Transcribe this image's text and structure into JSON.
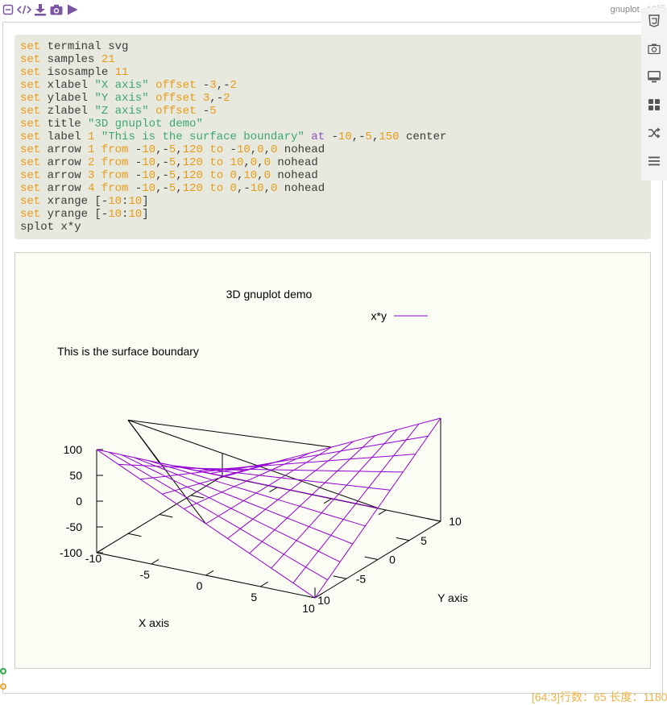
{
  "toolbar": {
    "icons": [
      "collapse-icon",
      "code-icon",
      "download-icon",
      "camera-icon",
      "run-icon"
    ]
  },
  "header": {
    "mode": "gnuplot",
    "line_count": "16行"
  },
  "sidebar": {
    "icons": [
      "css-icon",
      "screenshot-icon",
      "monitor-icon",
      "grid-icon",
      "shuffle-icon",
      "menu-icon"
    ]
  },
  "code": {
    "lines": [
      [
        [
          "kw",
          "set"
        ],
        [
          "t",
          " terminal svg"
        ]
      ],
      [
        [
          "kw",
          "set"
        ],
        [
          "t",
          " samples "
        ],
        [
          "num",
          "21"
        ]
      ],
      [
        [
          "kw",
          "set"
        ],
        [
          "t",
          " isosample "
        ],
        [
          "num",
          "11"
        ]
      ],
      [
        [
          "kw",
          "set"
        ],
        [
          "t",
          " xlabel "
        ],
        [
          "str",
          "\"X axis\""
        ],
        [
          "t",
          " "
        ],
        [
          "kw",
          "offset"
        ],
        [
          "t",
          " -"
        ],
        [
          "num",
          "3"
        ],
        [
          "t",
          ",-"
        ],
        [
          "num",
          "2"
        ]
      ],
      [
        [
          "kw",
          "set"
        ],
        [
          "t",
          " ylabel "
        ],
        [
          "str",
          "\"Y axis\""
        ],
        [
          "t",
          " "
        ],
        [
          "kw",
          "offset"
        ],
        [
          "t",
          " "
        ],
        [
          "num",
          "3"
        ],
        [
          "t",
          ",-"
        ],
        [
          "num",
          "2"
        ]
      ],
      [
        [
          "kw",
          "set"
        ],
        [
          "t",
          " zlabel "
        ],
        [
          "str",
          "\"Z axis\""
        ],
        [
          "t",
          " "
        ],
        [
          "kw",
          "offset"
        ],
        [
          "t",
          " -"
        ],
        [
          "num",
          "5"
        ]
      ],
      [
        [
          "kw",
          "set"
        ],
        [
          "t",
          " title "
        ],
        [
          "str",
          "\"3D gnuplot demo\""
        ]
      ],
      [
        [
          "kw",
          "set"
        ],
        [
          "t",
          " label "
        ],
        [
          "num",
          "1"
        ],
        [
          "t",
          " "
        ],
        [
          "str",
          "\"This is the surface boundary\""
        ],
        [
          "t",
          " "
        ],
        [
          "ctx",
          "at"
        ],
        [
          "t",
          " -"
        ],
        [
          "num",
          "10"
        ],
        [
          "t",
          ",-"
        ],
        [
          "num",
          "5"
        ],
        [
          "t",
          ","
        ],
        [
          "num",
          "150"
        ],
        [
          "t",
          " center"
        ]
      ],
      [
        [
          "kw",
          "set"
        ],
        [
          "t",
          " arrow "
        ],
        [
          "num",
          "1"
        ],
        [
          "t",
          " "
        ],
        [
          "kw",
          "from"
        ],
        [
          "t",
          " -"
        ],
        [
          "num",
          "10"
        ],
        [
          "t",
          ",-"
        ],
        [
          "num",
          "5"
        ],
        [
          "t",
          ","
        ],
        [
          "num",
          "120"
        ],
        [
          "t",
          " "
        ],
        [
          "kw",
          "to"
        ],
        [
          "t",
          " -"
        ],
        [
          "num",
          "10"
        ],
        [
          "t",
          ","
        ],
        [
          "num",
          "0"
        ],
        [
          "t",
          ","
        ],
        [
          "num",
          "0"
        ],
        [
          "t",
          " nohead"
        ]
      ],
      [
        [
          "kw",
          "set"
        ],
        [
          "t",
          " arrow "
        ],
        [
          "num",
          "2"
        ],
        [
          "t",
          " "
        ],
        [
          "kw",
          "from"
        ],
        [
          "t",
          " -"
        ],
        [
          "num",
          "10"
        ],
        [
          "t",
          ",-"
        ],
        [
          "num",
          "5"
        ],
        [
          "t",
          ","
        ],
        [
          "num",
          "120"
        ],
        [
          "t",
          " "
        ],
        [
          "kw",
          "to"
        ],
        [
          "t",
          " "
        ],
        [
          "num",
          "10"
        ],
        [
          "t",
          ","
        ],
        [
          "num",
          "0"
        ],
        [
          "t",
          ","
        ],
        [
          "num",
          "0"
        ],
        [
          "t",
          " nohead"
        ]
      ],
      [
        [
          "kw",
          "set"
        ],
        [
          "t",
          " arrow "
        ],
        [
          "num",
          "3"
        ],
        [
          "t",
          " "
        ],
        [
          "kw",
          "from"
        ],
        [
          "t",
          " -"
        ],
        [
          "num",
          "10"
        ],
        [
          "t",
          ",-"
        ],
        [
          "num",
          "5"
        ],
        [
          "t",
          ","
        ],
        [
          "num",
          "120"
        ],
        [
          "t",
          " "
        ],
        [
          "kw",
          "to"
        ],
        [
          "t",
          " "
        ],
        [
          "num",
          "0"
        ],
        [
          "t",
          ","
        ],
        [
          "num",
          "10"
        ],
        [
          "t",
          ","
        ],
        [
          "num",
          "0"
        ],
        [
          "t",
          " nohead"
        ]
      ],
      [
        [
          "kw",
          "set"
        ],
        [
          "t",
          " arrow "
        ],
        [
          "num",
          "4"
        ],
        [
          "t",
          " "
        ],
        [
          "kw",
          "from"
        ],
        [
          "t",
          " -"
        ],
        [
          "num",
          "10"
        ],
        [
          "t",
          ",-"
        ],
        [
          "num",
          "5"
        ],
        [
          "t",
          ","
        ],
        [
          "num",
          "120"
        ],
        [
          "t",
          " "
        ],
        [
          "kw",
          "to"
        ],
        [
          "t",
          " "
        ],
        [
          "num",
          "0"
        ],
        [
          "t",
          ",-"
        ],
        [
          "num",
          "10"
        ],
        [
          "t",
          ","
        ],
        [
          "num",
          "0"
        ],
        [
          "t",
          " nohead"
        ]
      ],
      [
        [
          "kw",
          "set"
        ],
        [
          "t",
          " xrange [-"
        ],
        [
          "num",
          "10"
        ],
        [
          "t",
          ":"
        ],
        [
          "num",
          "10"
        ],
        [
          "t",
          "]"
        ]
      ],
      [
        [
          "kw",
          "set"
        ],
        [
          "t",
          " yrange [-"
        ],
        [
          "num",
          "10"
        ],
        [
          "t",
          ":"
        ],
        [
          "num",
          "10"
        ],
        [
          "t",
          "]"
        ]
      ],
      [
        [
          "t",
          "splot x*y"
        ]
      ]
    ]
  },
  "plot": {
    "title": "3D gnuplot demo",
    "legend_label": "x*y",
    "boundary_label": "This is the surface boundary",
    "xlabel": "X axis",
    "ylabel": "Y axis",
    "surface_color": "#9400d3"
  },
  "chart_data": {
    "type": "surface",
    "function": "x*y",
    "title": "3D gnuplot demo",
    "xlabel": "X axis",
    "ylabel": "Y axis",
    "xrange": [
      -10,
      10
    ],
    "yrange": [
      -10,
      10
    ],
    "zrange": [
      -100,
      100
    ],
    "x_ticks": [
      "-10",
      "-5",
      "0",
      "5",
      "10"
    ],
    "y_ticks": [
      "-5",
      "0",
      "5",
      "10"
    ],
    "y_tick_10_at_x_axis_end": "10",
    "z_ticks": [
      "100",
      "50",
      "0",
      "-50",
      "-100"
    ],
    "grid_lines": 11,
    "series": [
      {
        "name": "x*y",
        "color": "#9400d3"
      }
    ],
    "legend": "top-right",
    "label": {
      "text": "This is the surface boundary",
      "at": [
        -10,
        -5,
        150
      ]
    },
    "arrows": [
      {
        "from": [
          -10,
          -5,
          120
        ],
        "to": [
          -10,
          0,
          0
        ]
      },
      {
        "from": [
          -10,
          -5,
          120
        ],
        "to": [
          10,
          0,
          0
        ]
      },
      {
        "from": [
          -10,
          -5,
          120
        ],
        "to": [
          0,
          10,
          0
        ]
      },
      {
        "from": [
          -10,
          -5,
          120
        ],
        "to": [
          0,
          -10,
          0
        ]
      }
    ]
  },
  "status": {
    "text": "[64:3]行数：65 长度：1180"
  }
}
